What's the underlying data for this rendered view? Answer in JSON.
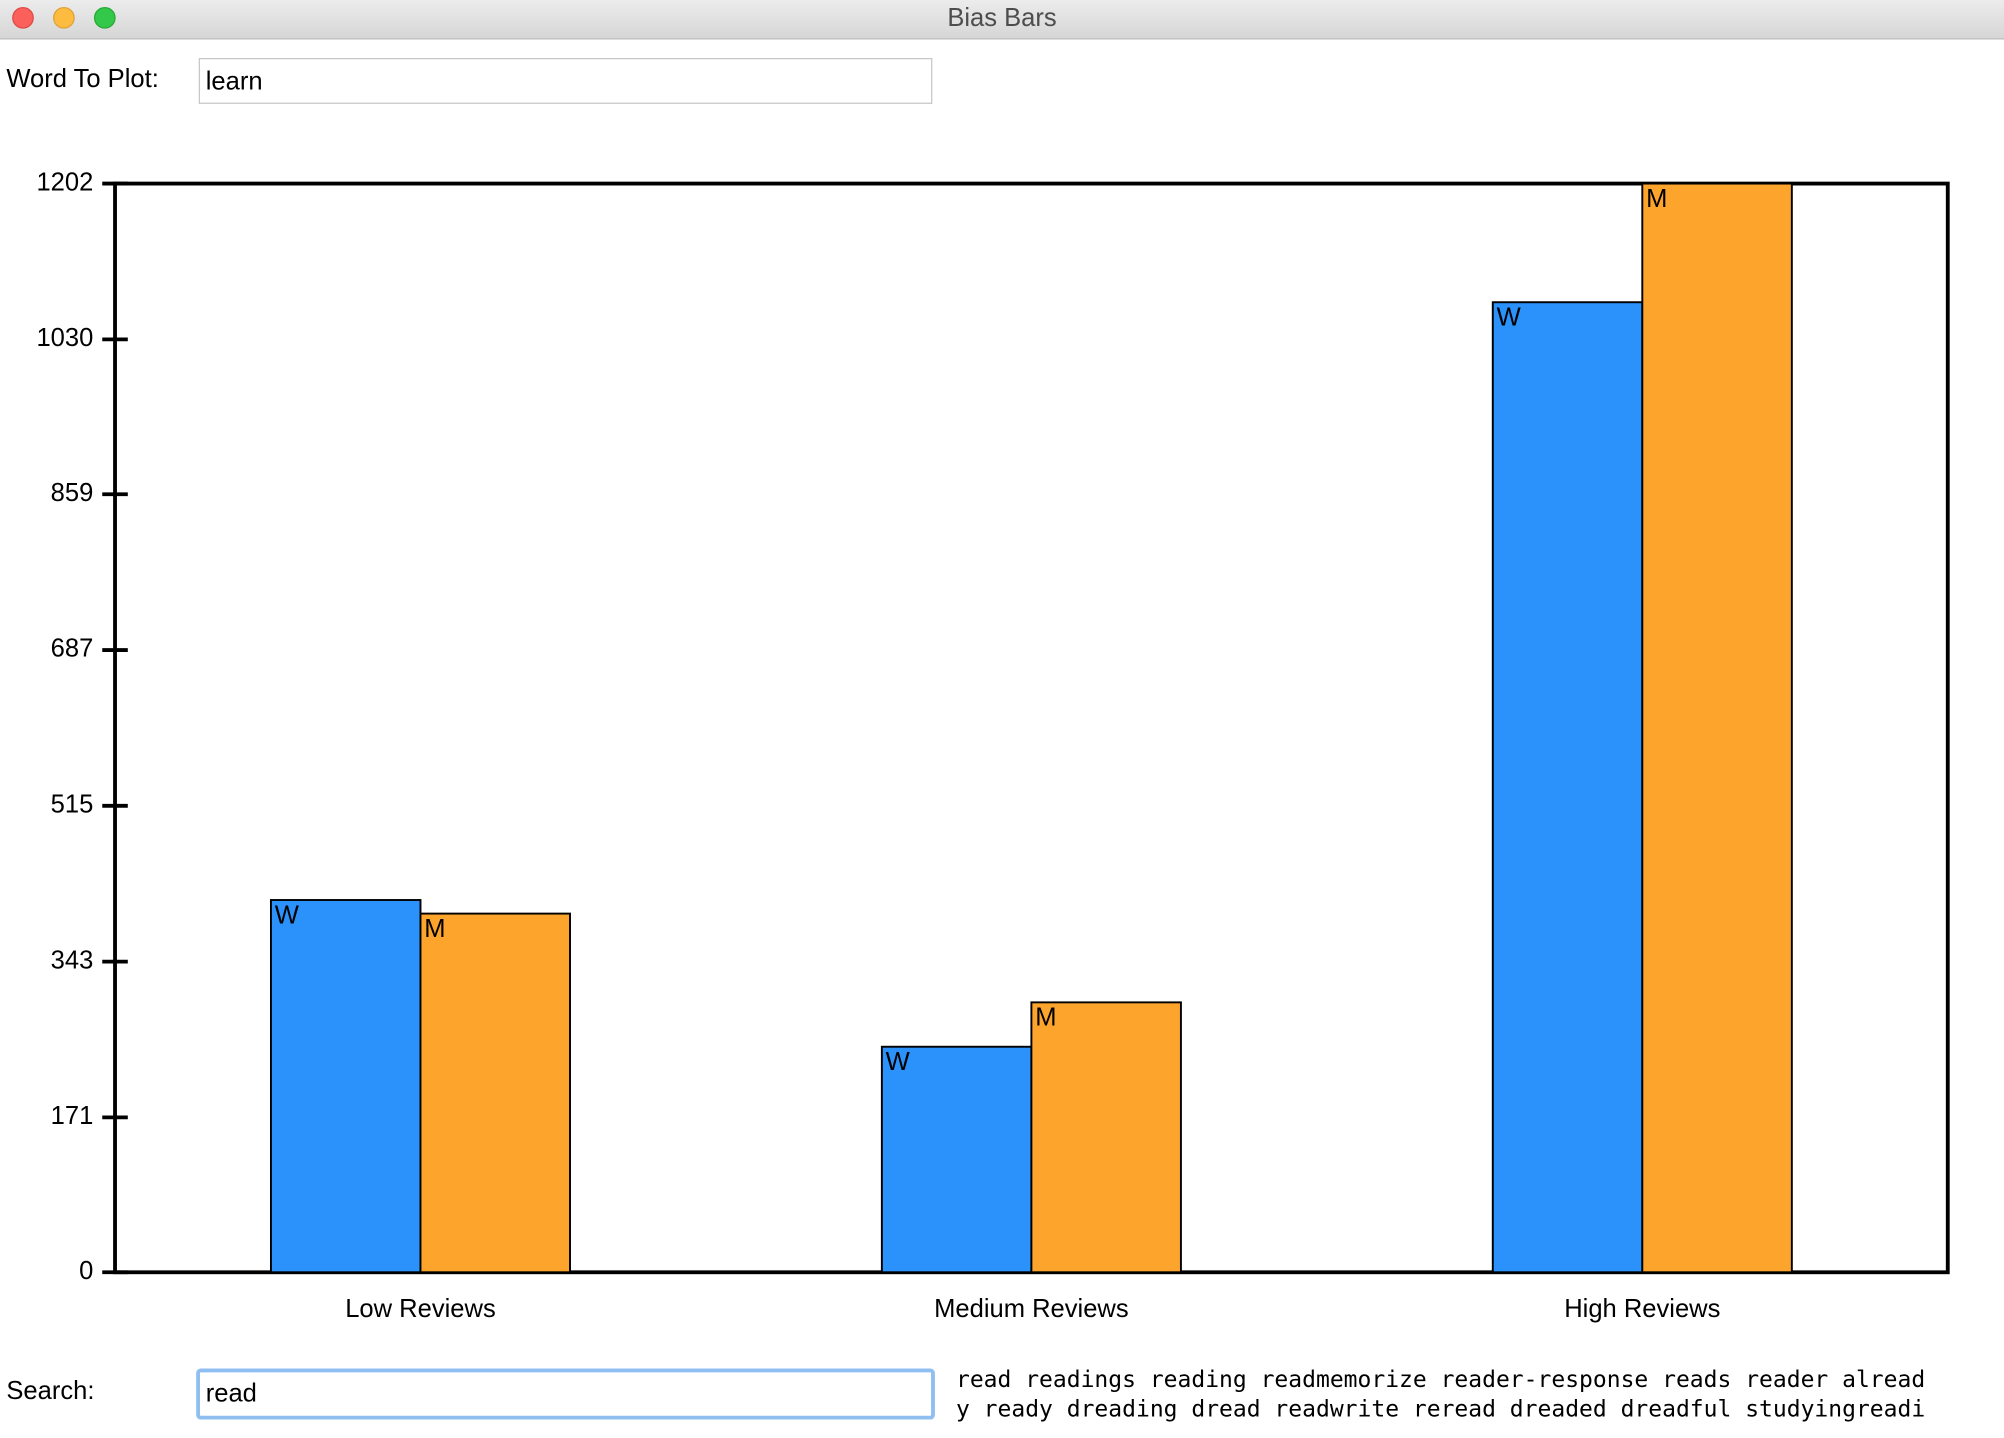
{
  "window": {
    "title": "Bias Bars"
  },
  "word_to_plot": {
    "label": "Word To Plot:",
    "value": "learn"
  },
  "chart_data": {
    "type": "bar",
    "categories": [
      "Low Reviews",
      "Medium Reviews",
      "High Reviews"
    ],
    "series": [
      {
        "name": "W",
        "color": "#2a92fa",
        "values": [
          411,
          249,
          1071
        ]
      },
      {
        "name": "M",
        "color": "#fca42c",
        "values": [
          396,
          298,
          1202
        ]
      }
    ],
    "ylim": [
      0,
      1202
    ],
    "yticks": [
      0,
      171,
      343,
      515,
      687,
      859,
      1030,
      1202
    ]
  },
  "search": {
    "label": "Search:",
    "value": "read",
    "results": [
      "read readings reading readmemorize reader-response reads reader alread",
      "y ready dreading dread readwrite reread dreaded dreadful studyingreadi"
    ]
  }
}
